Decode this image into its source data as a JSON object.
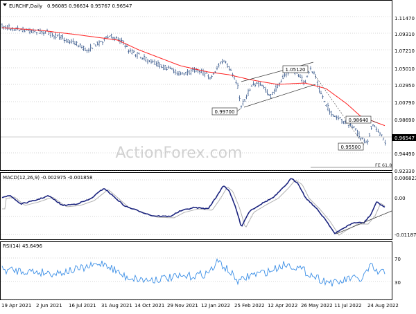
{
  "main": {
    "title": "EURCHF,Daily",
    "ohlc": "0.96085 0.96634 0.95767 0.96547",
    "watermark": "ActionForex.com",
    "prices": [
      "1.11470",
      "1.09310",
      "1.07210",
      "1.05010",
      "1.02950",
      "1.00790",
      "0.98690",
      "0.96547",
      "0.94490",
      "0.92330"
    ],
    "current_price": "0.96547",
    "annotations": [
      {
        "text": "0.99700"
      },
      {
        "text": "1.05120"
      },
      {
        "text": "0.98640"
      },
      {
        "text": "0.95500"
      }
    ],
    "fe_label": "FE 61.8"
  },
  "macd": {
    "title": "MACD(12,26,9) -0.002975 -0.001858",
    "scale": [
      "0.006823",
      "0.00",
      "-0.011874"
    ]
  },
  "rsi": {
    "title": "RSI(14) 45.6496",
    "scale": [
      "70",
      "30"
    ]
  },
  "xaxis": [
    "19 Apr 2021",
    "2 Jun 2021",
    "16 Jul 2021",
    "31 Aug 2021",
    "14 Oct 2021",
    "29 Nov 2021",
    "12 Jan 2022",
    "25 Feb 2022",
    "12 Apr 2022",
    "26 May 2022",
    "11 Jul 2022",
    "24 Aug 2022"
  ],
  "colors": {
    "price": "#3a5a8c",
    "ma": "#ff2020",
    "macd": "#1a237e",
    "signal": "#b0b0b0",
    "rsi": "#3a8ee6",
    "grid": "#9a9a9a"
  }
}
